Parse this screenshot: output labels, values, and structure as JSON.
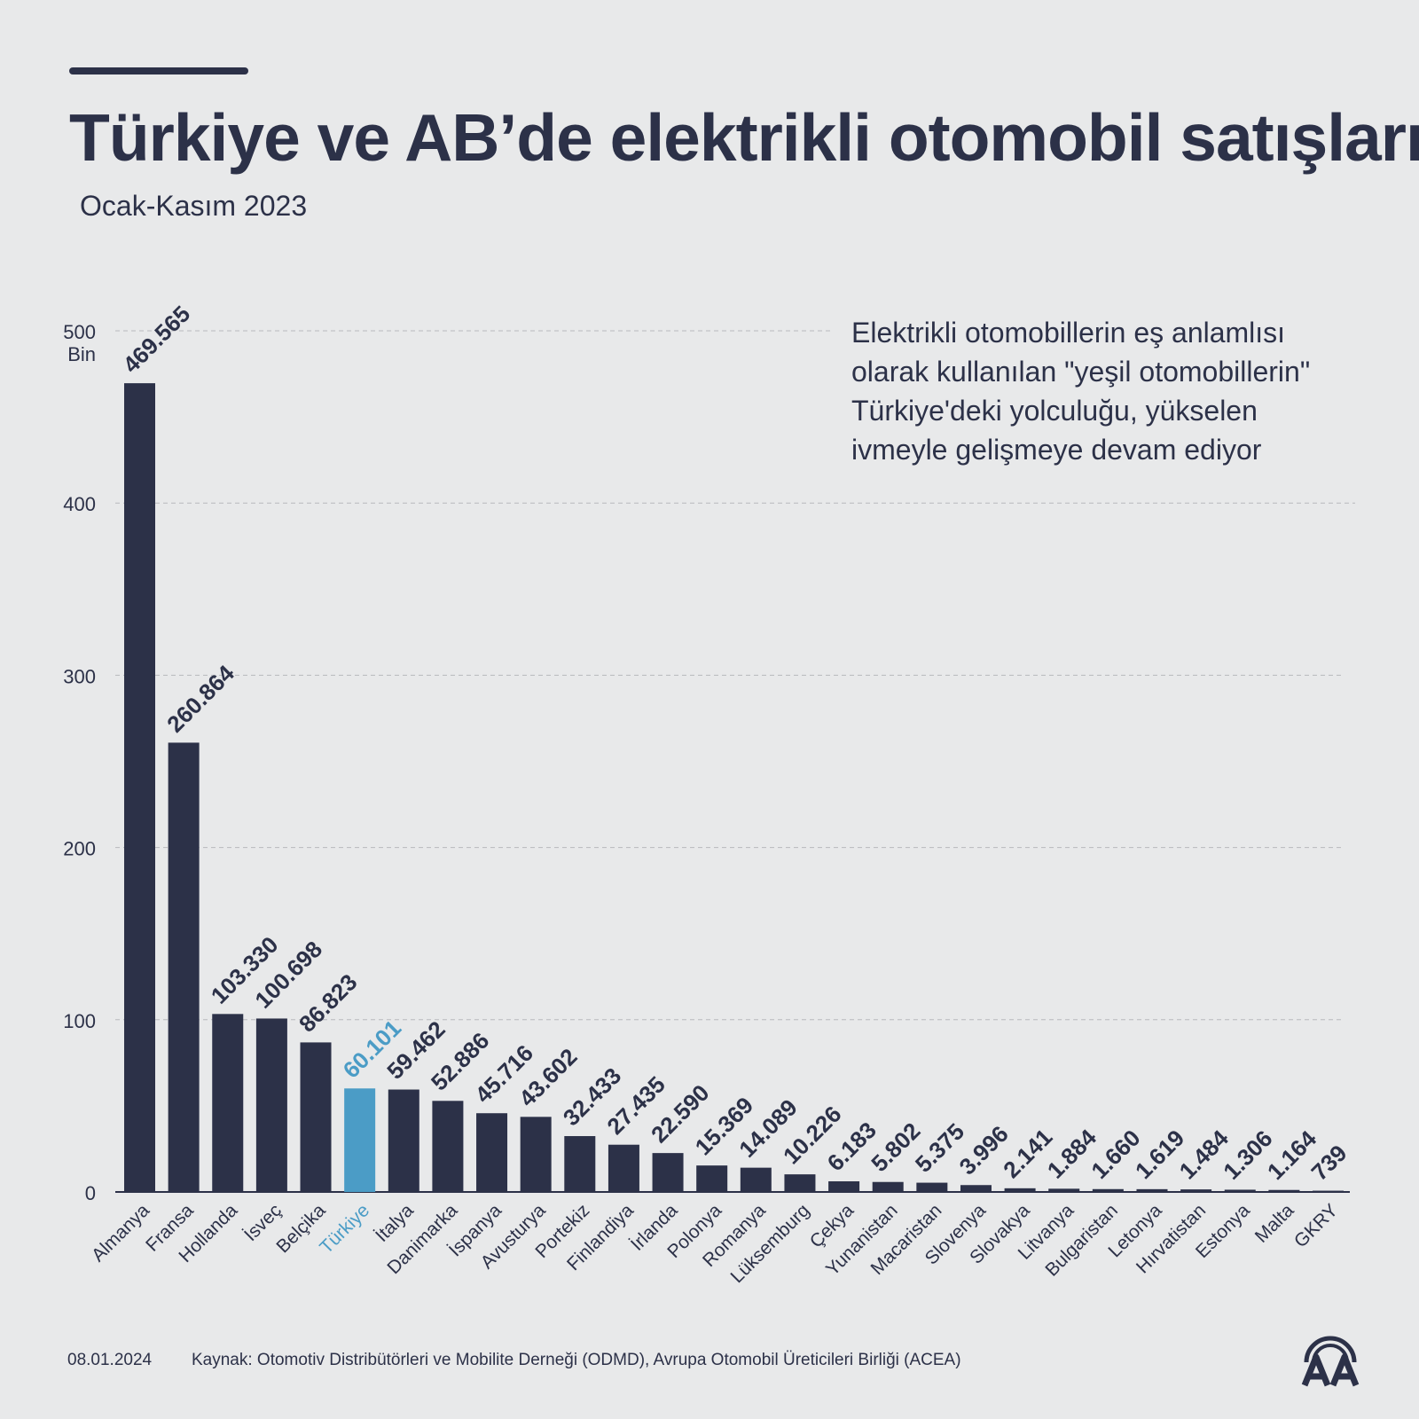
{
  "header": {
    "title": "Türkiye ve AB’de elektrikli otomobil satışları",
    "subtitle": "Ocak-Kasım 2023"
  },
  "note": {
    "lines": [
      "Elektrikli otomobillerin eş anlamlısı",
      "olarak kullanılan \"yeşil otomobillerin\"",
      "Türkiye'deki yolculuğu, yükselen",
      "ivmeyle gelişmeye devam ediyor"
    ]
  },
  "footer": {
    "date": "08.01.2024",
    "source": "Kaynak: Otomotiv Distribütörleri ve Mobilite Derneği (ODMD), Avrupa Otomobil Üreticileri Birliği (ACEA)"
  },
  "logo": {
    "icon": "aa-logo-icon",
    "text": "AA"
  },
  "colors": {
    "bar": "#2c3148",
    "highlight": "#4b9cc6",
    "background": "#e8e9ea",
    "grid": "#b7b9bd"
  },
  "chart_data": {
    "type": "bar",
    "title": "Türkiye ve AB’de elektrikli otomobil satışları",
    "subtitle": "Ocak-Kasım 2023",
    "xlabel": "",
    "ylabel": "",
    "unit_label": "Bin",
    "ylim": [
      0,
      500
    ],
    "yticks": [
      0,
      100,
      200,
      300,
      400,
      500
    ],
    "grid": true,
    "highlight": "Türkiye",
    "categories": [
      "Almanya",
      "Fransa",
      "Hollanda",
      "İsveç",
      "Belçika",
      "Türkiye",
      "İtalya",
      "Danimarka",
      "İspanya",
      "Avusturya",
      "Portekiz",
      "Finlandiya",
      "İrlanda",
      "Polonya",
      "Romanya",
      "Lüksemburg",
      "Çekya",
      "Yunanistan",
      "Macaristan",
      "Slovenya",
      "Slovakya",
      "Litvanya",
      "Bulgaristan",
      "Letonya",
      "Hırvatistan",
      "Estonya",
      "Malta",
      "GKRY"
    ],
    "values": [
      469565,
      260864,
      103330,
      100698,
      86823,
      60101,
      59462,
      52886,
      45716,
      43602,
      32433,
      27435,
      22590,
      15369,
      14089,
      10226,
      6183,
      5802,
      5375,
      3996,
      2141,
      1884,
      1660,
      1619,
      1484,
      1306,
      1164,
      739
    ],
    "value_labels": [
      "469.565",
      "260.864",
      "103.330",
      "100.698",
      "86.823",
      "60.101",
      "59.462",
      "52.886",
      "45.716",
      "43.602",
      "32.433",
      "27.435",
      "22.590",
      "15.369",
      "14.089",
      "10.226",
      "6.183",
      "5.802",
      "5.375",
      "3.996",
      "2.141",
      "1.884",
      "1.660",
      "1.619",
      "1.484",
      "1.306",
      "1.164",
      "739"
    ]
  }
}
